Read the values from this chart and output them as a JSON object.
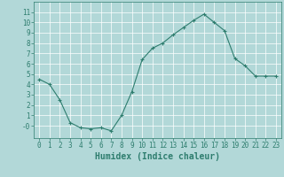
{
  "x": [
    0,
    1,
    2,
    3,
    4,
    5,
    6,
    7,
    8,
    9,
    10,
    11,
    12,
    13,
    14,
    15,
    16,
    17,
    18,
    19,
    20,
    21,
    22,
    23
  ],
  "y": [
    4.5,
    4.0,
    2.5,
    0.3,
    -0.2,
    -0.3,
    -0.2,
    -0.5,
    1.0,
    3.3,
    6.4,
    7.5,
    8.0,
    8.8,
    9.5,
    10.2,
    10.8,
    10.0,
    9.2,
    6.5,
    5.8,
    4.8,
    4.8,
    4.8
  ],
  "line_color": "#2e7d6e",
  "marker": "+",
  "marker_size": 3,
  "marker_linewidth": 0.8,
  "line_width": 0.8,
  "bg_color": "#b2d8d8",
  "grid_color": "#c8e0e0",
  "xlabel": "Humidex (Indice chaleur)",
  "xlabel_fontsize": 7,
  "tick_fontsize": 5.5,
  "ylim": [
    -1.2,
    12
  ],
  "xlim": [
    -0.5,
    23.5
  ],
  "yticks": [
    0,
    1,
    2,
    3,
    4,
    5,
    6,
    7,
    8,
    9,
    10,
    11
  ],
  "ytick_labels": [
    "-0",
    "1",
    "2",
    "3",
    "4",
    "5",
    "6",
    "7",
    "8",
    "9",
    "10",
    "11"
  ],
  "xticks": [
    0,
    1,
    2,
    3,
    4,
    5,
    6,
    7,
    8,
    9,
    10,
    11,
    12,
    13,
    14,
    15,
    16,
    17,
    18,
    19,
    20,
    21,
    22,
    23
  ],
  "xtick_labels": [
    "0",
    "1",
    "2",
    "3",
    "4",
    "5",
    "6",
    "7",
    "8",
    "9",
    "10",
    "11",
    "12",
    "13",
    "14",
    "15",
    "16",
    "17",
    "18",
    "19",
    "20",
    "21",
    "22",
    "23"
  ]
}
